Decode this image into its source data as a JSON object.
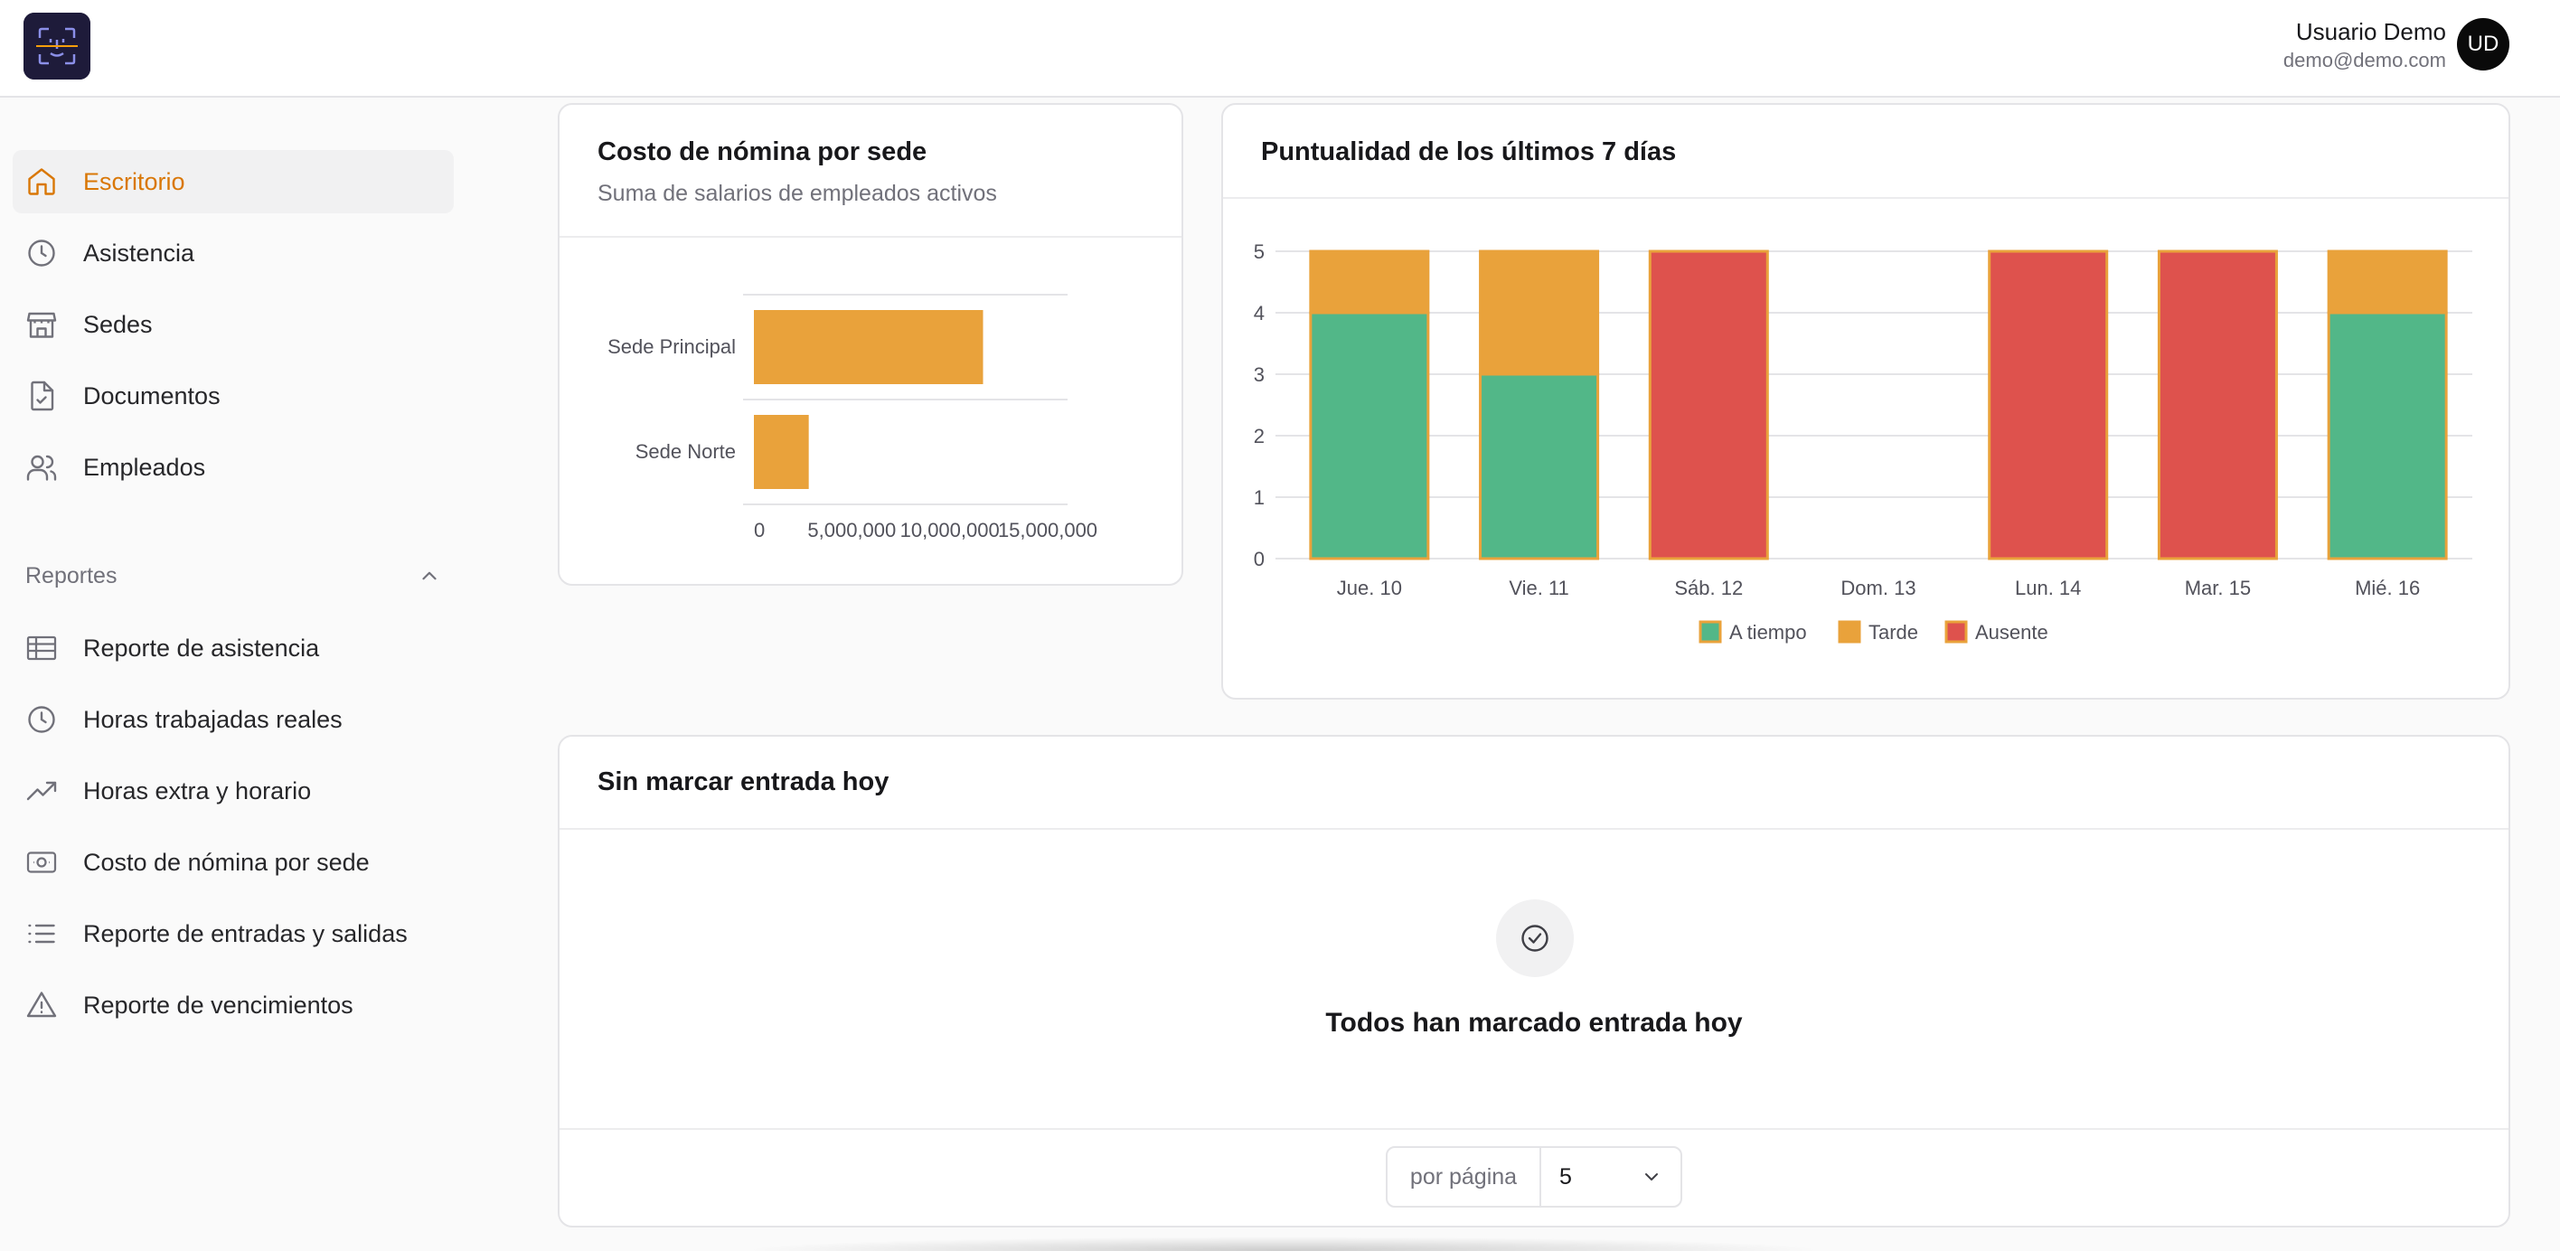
{
  "header": {
    "user_name": "Usuario Demo",
    "user_email": "demo@demo.com",
    "avatar_initials": "UD"
  },
  "sidebar": {
    "items": [
      {
        "label": "Escritorio",
        "icon": "home-icon",
        "active": true
      },
      {
        "label": "Asistencia",
        "icon": "clock-icon"
      },
      {
        "label": "Sedes",
        "icon": "store-icon"
      },
      {
        "label": "Documentos",
        "icon": "file-check-icon"
      },
      {
        "label": "Empleados",
        "icon": "users-icon"
      }
    ],
    "reports_section": {
      "label": "Reportes",
      "items": [
        {
          "label": "Reporte de asistencia",
          "icon": "table-icon"
        },
        {
          "label": "Horas trabajadas reales",
          "icon": "clock-icon"
        },
        {
          "label": "Horas extra y horario",
          "icon": "trending-up-icon"
        },
        {
          "label": "Costo de nómina por sede",
          "icon": "banknote-icon"
        },
        {
          "label": "Reporte de entradas y salidas",
          "icon": "list-icon"
        },
        {
          "label": "Reporte de vencimientos",
          "icon": "alert-triangle-icon"
        }
      ]
    }
  },
  "payroll_card": {
    "title": "Costo de nómina por sede",
    "subtitle": "Suma de salarios de empleados activos"
  },
  "punctuality_card": {
    "title": "Puntualidad de los últimos 7 días"
  },
  "missing_card": {
    "title": "Sin marcar entrada hoy",
    "empty_message": "Todos han marcado entrada hoy",
    "per_page_label": "por página",
    "per_page_value": "5"
  },
  "colors": {
    "accent": "#d97706",
    "on_time": "#52b788",
    "late": "#e9a23b",
    "absent": "#de524d"
  },
  "chart_data": [
    {
      "type": "bar",
      "orientation": "horizontal",
      "categories": [
        "Sede Principal",
        "Sede Norte"
      ],
      "values": [
        11700000,
        2800000
      ],
      "xlim": [
        0,
        15000000
      ],
      "xticks": [
        "0",
        "5,000,000",
        "10,000,000",
        "15,000,000"
      ],
      "grid": true
    },
    {
      "type": "bar",
      "stacked": true,
      "categories": [
        "Jue. 10",
        "Vie. 11",
        "Sáb. 12",
        "Dom. 13",
        "Lun. 14",
        "Mar. 15",
        "Mié. 16"
      ],
      "series": [
        {
          "name": "A tiempo",
          "values": [
            4,
            3,
            0,
            0,
            0,
            0,
            4
          ]
        },
        {
          "name": "Tarde",
          "values": [
            1,
            2,
            0,
            0,
            0,
            0,
            1
          ]
        },
        {
          "name": "Ausente",
          "values": [
            0,
            0,
            5,
            0,
            5,
            5,
            0
          ]
        }
      ],
      "ylim": [
        0,
        5
      ],
      "yticks": [
        "0",
        "1",
        "2",
        "3",
        "4",
        "5"
      ],
      "legend": "bottom",
      "grid": true
    }
  ]
}
